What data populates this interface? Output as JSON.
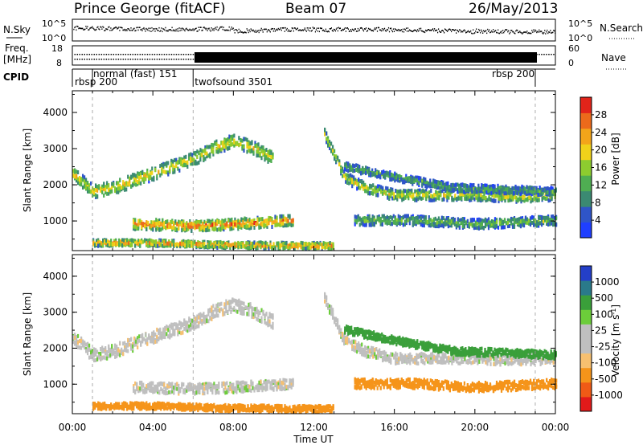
{
  "header": {
    "title": "Prince George (fitACF)",
    "beam": "Beam 07",
    "date": "26/May/2013"
  },
  "top_panels": {
    "nsky_label": "N.Sky",
    "nsearch_label": "N.Search",
    "noise_ticks": [
      "10^5",
      "10^0"
    ],
    "freq_label": "Freq.",
    "freq_unit": "[MHz]",
    "freq_ticks": [
      "18",
      "8"
    ],
    "nave_label": "Nave",
    "nave_ticks": [
      "60",
      "0"
    ],
    "cpid_label": "CPID",
    "cpid_segments": [
      {
        "label": "rbsp 200",
        "start": 0.0,
        "end": 1.0
      },
      {
        "label": "normal (fast) 151",
        "start": 1.0,
        "end": 6.0
      },
      {
        "label": "twofsound 3501",
        "start": 6.0,
        "end": 23.0
      },
      {
        "label": "rbsp 200",
        "start": 23.0,
        "end": 24.0
      }
    ]
  },
  "colors": {
    "power_scale": [
      "#1f3fff",
      "#2f55c8",
      "#3b8a72",
      "#4fae52",
      "#8dcc2f",
      "#f0d21a",
      "#f3a51a",
      "#ec6a1b",
      "#e2241a"
    ],
    "velocity_scale": [
      "#e21a1a",
      "#f05a16",
      "#f5941a",
      "#f7c070",
      "#bfbfbf",
      "#bfbfbf",
      "#6ccd3a",
      "#3a9f3a",
      "#2a7a8a",
      "#243fc8"
    ]
  },
  "chart_data": [
    {
      "type": "heatmap",
      "name_hint": "power",
      "ylabel": "Slant Range [km]",
      "xlabel": "",
      "x_range_hours": [
        0,
        24
      ],
      "ylim": [
        180,
        4600
      ],
      "yticks": [
        1000,
        2000,
        3000,
        4000
      ],
      "colorbar_label": "Power [dB]",
      "colorbar_ticks": [
        "4",
        "8",
        "12",
        "16",
        "20",
        "24",
        "28"
      ],
      "colorbar_range": [
        0,
        30
      ],
      "echo_regions": [
        {
          "points": [
            [
              0.0,
              2300
            ],
            [
              1.0,
              1800
            ],
            [
              2.0,
              1900
            ],
            [
              3.0,
              2100
            ],
            [
              4.0,
              2300
            ],
            [
              5.0,
              2500
            ],
            [
              6.0,
              2700
            ],
            [
              7.0,
              3000
            ],
            [
              8.0,
              3200
            ],
            [
              9.0,
              3000
            ],
            [
              10.0,
              2700
            ]
          ],
          "width_km": 250,
          "peak_db": 20
        },
        {
          "points": [
            [
              12.5,
              3400
            ],
            [
              13.5,
              2200
            ],
            [
              14.5,
              1900
            ],
            [
              16.0,
              1700
            ],
            [
              18.0,
              1700
            ],
            [
              20.0,
              1700
            ],
            [
              22.0,
              1650
            ],
            [
              24.0,
              1700
            ]
          ],
          "width_km": 200,
          "peak_db": 18
        },
        {
          "points": [
            [
              3.0,
              900
            ],
            [
              6.0,
              850
            ],
            [
              8.0,
              900
            ],
            [
              11.0,
              1000
            ]
          ],
          "width_km": 200,
          "peak_db": 26
        },
        {
          "points": [
            [
              1.0,
              380
            ],
            [
              4.0,
              380
            ],
            [
              7.0,
              330
            ],
            [
              11.0,
              300
            ],
            [
              13.0,
              300
            ]
          ],
          "width_km": 120,
          "peak_db": 24
        },
        {
          "points": [
            [
              14.0,
              1000
            ],
            [
              17.0,
              1000
            ],
            [
              20.0,
              900
            ],
            [
              24.0,
              1000
            ]
          ],
          "width_km": 180,
          "peak_db": 14
        },
        {
          "points": [
            [
              13.5,
              2500
            ],
            [
              16.0,
              2200
            ],
            [
              19.0,
              1900
            ],
            [
              24.0,
              1800
            ]
          ],
          "width_km": 150,
          "peak_db": 12
        }
      ]
    },
    {
      "type": "heatmap",
      "name_hint": "velocity",
      "ylabel": "Slant Range [km]",
      "xlabel": "Time UT",
      "x_range_hours": [
        0,
        24
      ],
      "xticks": [
        "00:00",
        "04:00",
        "08:00",
        "12:00",
        "16:00",
        "20:00",
        "00:00"
      ],
      "ylim": [
        180,
        4600
      ],
      "yticks": [
        1000,
        2000,
        3000,
        4000
      ],
      "colorbar_label": "Velocity [m s^-1]",
      "colorbar_ticks": [
        "-1000",
        "-500",
        "-100",
        "-25",
        "25",
        "100",
        "500",
        "1000"
      ],
      "echo_regions": [
        {
          "points": [
            [
              0.0,
              2300
            ],
            [
              1.0,
              1800
            ],
            [
              2.0,
              1900
            ],
            [
              3.0,
              2100
            ],
            [
              4.0,
              2300
            ],
            [
              5.0,
              2500
            ],
            [
              6.0,
              2700
            ],
            [
              7.0,
              3000
            ],
            [
              8.0,
              3200
            ],
            [
              9.0,
              3000
            ],
            [
              10.0,
              2700
            ]
          ],
          "width_km": 250,
          "velocity": 0
        },
        {
          "points": [
            [
              12.5,
              3400
            ],
            [
              13.5,
              2200
            ],
            [
              14.5,
              1900
            ],
            [
              16.0,
              1700
            ],
            [
              18.0,
              1700
            ],
            [
              20.0,
              1700
            ],
            [
              22.0,
              1650
            ],
            [
              24.0,
              1700
            ]
          ],
          "width_km": 200,
          "velocity": 0
        },
        {
          "points": [
            [
              3.0,
              900
            ],
            [
              6.0,
              850
            ],
            [
              8.0,
              900
            ],
            [
              11.0,
              1000
            ]
          ],
          "width_km": 200,
          "velocity": 0
        },
        {
          "points": [
            [
              1.0,
              380
            ],
            [
              4.0,
              380
            ],
            [
              7.0,
              330
            ],
            [
              11.0,
              300
            ],
            [
              13.0,
              300
            ]
          ],
          "width_km": 120,
          "velocity": -300
        },
        {
          "points": [
            [
              14.0,
              1000
            ],
            [
              17.0,
              1000
            ],
            [
              20.0,
              900
            ],
            [
              24.0,
              1000
            ]
          ],
          "width_km": 180,
          "velocity": -150
        },
        {
          "points": [
            [
              13.5,
              2500
            ],
            [
              16.0,
              2200
            ],
            [
              19.0,
              1900
            ],
            [
              24.0,
              1800
            ]
          ],
          "width_km": 150,
          "velocity": 150
        }
      ]
    }
  ]
}
